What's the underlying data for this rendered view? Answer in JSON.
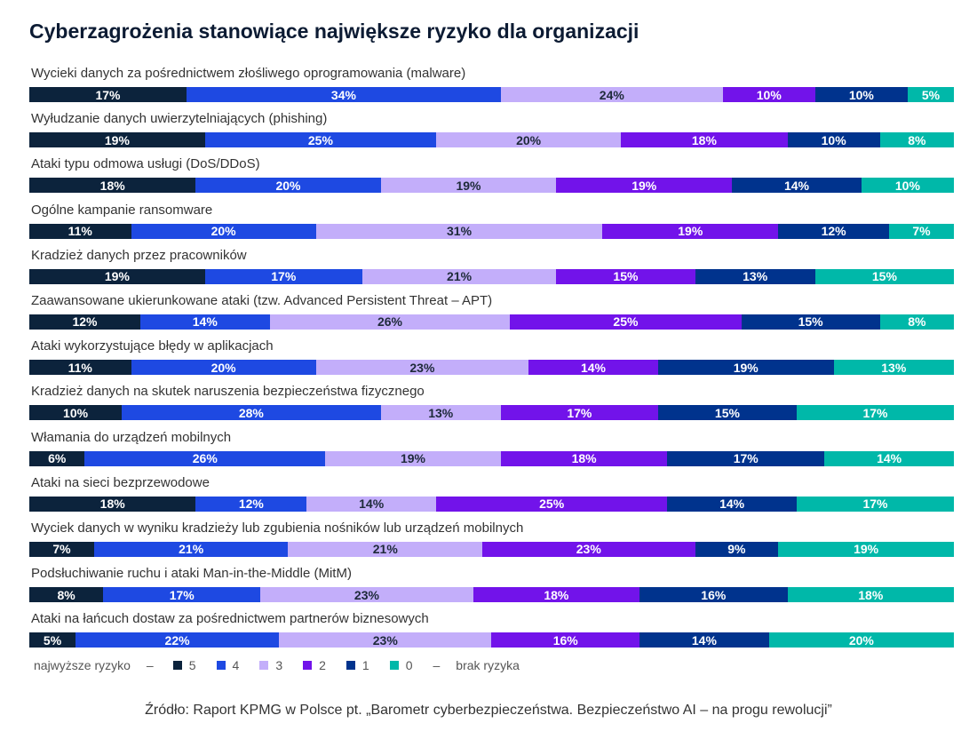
{
  "chart_data": {
    "type": "bar",
    "orientation": "horizontal-stacked-100",
    "title": "Cyberzagrożenia stanowiące największe ryzyko dla organizacji",
    "categories": [
      "Wycieki danych za pośrednictwem złośliwego oprogramowania (malware)",
      "Wyłudzanie danych uwierzytelniających (phishing)",
      "Ataki typu odmowa usługi (DoS/DDoS)",
      "Ogólne kampanie ransomware",
      "Kradzież danych przez pracowników",
      "Zaawansowane ukierunkowane ataki (tzw. Advanced Persistent Threat – APT)",
      "Ataki wykorzystujące błędy w aplikacjach",
      "Kradzież danych na skutek naruszenia bezpieczeństwa fizycznego",
      "Włamania do urządzeń mobilnych",
      "Ataki na sieci bezprzewodowe",
      "Wyciek danych w wyniku kradzieży lub zgubienia nośników lub urządzeń mobilnych",
      "Podsłuchiwanie ruchu i ataki Man-in-the-Middle (MitM)",
      "Ataki na łańcuch dostaw za pośrednictwem partnerów biznesowych"
    ],
    "series": [
      {
        "name": "5",
        "color": "#0c233c",
        "label_color": "#ffffff",
        "values": [
          17,
          19,
          18,
          11,
          19,
          12,
          11,
          10,
          6,
          18,
          7,
          8,
          5
        ]
      },
      {
        "name": "4",
        "color": "#1e49e2",
        "label_color": "#ffffff",
        "values": [
          34,
          25,
          20,
          20,
          17,
          14,
          20,
          28,
          26,
          12,
          21,
          17,
          22
        ]
      },
      {
        "name": "3",
        "color": "#c3aefa",
        "label_color": "#1e2a3a",
        "values": [
          24,
          20,
          19,
          31,
          21,
          26,
          23,
          13,
          19,
          14,
          21,
          23,
          23
        ]
      },
      {
        "name": "2",
        "color": "#7213ea",
        "label_color": "#ffffff",
        "values": [
          10,
          18,
          19,
          19,
          15,
          25,
          14,
          17,
          18,
          25,
          23,
          18,
          16
        ]
      },
      {
        "name": "1",
        "color": "#00338d",
        "label_color": "#ffffff",
        "values": [
          10,
          10,
          14,
          12,
          13,
          15,
          19,
          15,
          17,
          14,
          9,
          16,
          14
        ]
      },
      {
        "name": "0",
        "color": "#00b8a9",
        "label_color": "#ffffff",
        "values": [
          5,
          8,
          10,
          7,
          15,
          8,
          13,
          17,
          14,
          17,
          19,
          18,
          20
        ]
      }
    ],
    "unit": "%",
    "legend": {
      "position": "bottom-left",
      "left_text": "najwyższe ryzyko",
      "right_text": "brak ryzyka",
      "dash": "–"
    }
  },
  "source": "Źródło: Raport KPMG w Polsce pt. „Barometr cyberbezpieczeństwa. Bezpieczeństwo AI – na progu rewolucji”"
}
